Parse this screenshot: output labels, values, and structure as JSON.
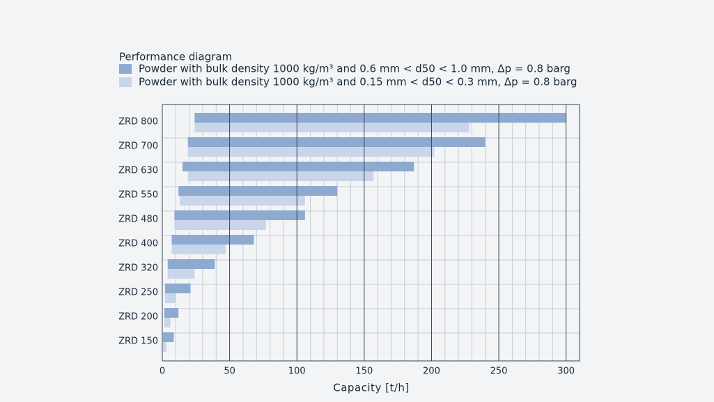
{
  "chart_data": {
    "type": "range-bar",
    "orientation": "horizontal",
    "title": "Performance diagram",
    "xlabel": "Capacity [t/h]",
    "categories": [
      "ZRD 800",
      "ZRD 700",
      "ZRD 630",
      "ZRD 550",
      "ZRD 480",
      "ZRD 400",
      "ZRD 320",
      "ZRD 250",
      "ZRD 200",
      "ZRD 150"
    ],
    "series": [
      {
        "name": "Powder with bulk density 1000 kg/m³ and 0.6 mm < d50 < 1.0 mm, Δp = 0.8 barg",
        "color": "#8eaad1",
        "values": [
          [
            24,
            300
          ],
          [
            19,
            240
          ],
          [
            15,
            187
          ],
          [
            12,
            130
          ],
          [
            9,
            106
          ],
          [
            7,
            68
          ],
          [
            4,
            39
          ],
          [
            2,
            21
          ],
          [
            1.5,
            12
          ],
          [
            0.5,
            8.5
          ]
        ]
      },
      {
        "name": "Powder with bulk density 1000 kg/m³ and 0.15 mm < d50 < 0.3 mm, Δp = 0.8 barg",
        "color": "#c9d6ea",
        "values": [
          [
            24,
            228
          ],
          [
            19,
            202
          ],
          [
            19,
            157
          ],
          [
            13,
            106
          ],
          [
            9,
            77
          ],
          [
            7,
            47
          ],
          [
            4,
            24
          ],
          [
            2,
            10
          ],
          [
            1.5,
            6
          ],
          [
            0.5,
            3
          ]
        ]
      }
    ],
    "xlim": [
      0,
      310
    ],
    "xticks": [
      0,
      50,
      100,
      150,
      200,
      250,
      300
    ],
    "xminor": [
      10,
      20,
      30,
      40,
      60,
      70,
      80,
      90,
      110,
      120,
      130,
      140,
      160,
      170,
      180,
      190,
      210,
      220,
      230,
      240,
      260,
      270,
      280,
      290,
      310
    ],
    "grid": true
  }
}
